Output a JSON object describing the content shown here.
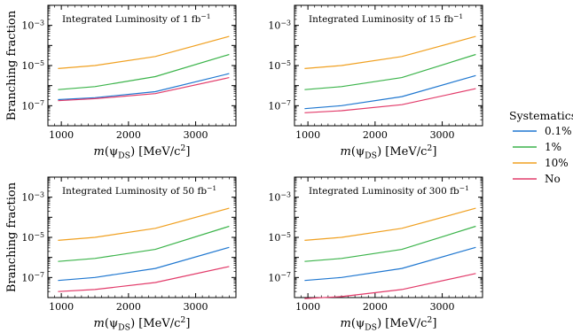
{
  "chart_data": [
    {
      "type": "line",
      "annotation": "Integrated Luminosity of 1 fb⁻¹",
      "xlabel": "m(ψ_DS) [MeV/c²]",
      "ylabel": "Branching fraction",
      "xlim": [
        800,
        3600
      ],
      "ylim_log10": [
        -8,
        -2
      ],
      "y_scale": "log",
      "x_ticks": [
        "1000",
        "2000",
        "3000"
      ],
      "x_tick_values": [
        1000,
        2000,
        3000
      ],
      "y_ticks": [
        "10⁻⁷",
        "10⁻⁵",
        "10⁻³"
      ],
      "y_tick_values_log10": [
        -7,
        -5,
        -3
      ],
      "x": [
        950,
        1500,
        2400,
        3500
      ],
      "series": [
        {
          "name": "0.1%",
          "color": "#1f77d0",
          "log10_values": [
            -6.7,
            -6.6,
            -6.3,
            -5.4
          ]
        },
        {
          "name": "1%",
          "color": "#3cb44b",
          "log10_values": [
            -6.2,
            -6.05,
            -5.55,
            -4.45
          ]
        },
        {
          "name": "10%",
          "color": "#f0a020",
          "log10_values": [
            -5.15,
            -5.0,
            -4.55,
            -3.55
          ]
        },
        {
          "name": "No",
          "color": "#e23b6a",
          "log10_values": [
            -6.75,
            -6.65,
            -6.4,
            -5.6
          ]
        }
      ]
    },
    {
      "type": "line",
      "annotation": "Integrated Luminosity of 15 fb⁻¹",
      "xlabel": "m(ψ_DS) [MeV/c²]",
      "ylabel": "",
      "xlim": [
        800,
        3600
      ],
      "ylim_log10": [
        -8,
        -2
      ],
      "y_scale": "log",
      "x_ticks": [
        "1000",
        "2000",
        "3000"
      ],
      "x_tick_values": [
        1000,
        2000,
        3000
      ],
      "y_ticks": [
        "10⁻⁷",
        "10⁻⁵",
        "10⁻³"
      ],
      "y_tick_values_log10": [
        -7,
        -5,
        -3
      ],
      "x": [
        950,
        1500,
        2400,
        3500
      ],
      "series": [
        {
          "name": "0.1%",
          "color": "#1f77d0",
          "log10_values": [
            -7.15,
            -7.0,
            -6.55,
            -5.5
          ]
        },
        {
          "name": "1%",
          "color": "#3cb44b",
          "log10_values": [
            -6.2,
            -6.05,
            -5.6,
            -4.45
          ]
        },
        {
          "name": "10%",
          "color": "#f0a020",
          "log10_values": [
            -5.15,
            -5.0,
            -4.55,
            -3.55
          ]
        },
        {
          "name": "No",
          "color": "#e23b6a",
          "log10_values": [
            -7.35,
            -7.25,
            -6.95,
            -6.15
          ]
        }
      ]
    },
    {
      "type": "line",
      "annotation": "Integrated Luminosity of 50 fb⁻¹",
      "xlabel": "m(ψ_DS) [MeV/c²]",
      "ylabel": "Branching fraction",
      "xlim": [
        800,
        3600
      ],
      "ylim_log10": [
        -8,
        -2
      ],
      "y_scale": "log",
      "x_ticks": [
        "1000",
        "2000",
        "3000"
      ],
      "x_tick_values": [
        1000,
        2000,
        3000
      ],
      "y_ticks": [
        "10⁻⁷",
        "10⁻⁵",
        "10⁻³"
      ],
      "y_tick_values_log10": [
        -7,
        -5,
        -3
      ],
      "x": [
        950,
        1500,
        2400,
        3500
      ],
      "series": [
        {
          "name": "0.1%",
          "color": "#1f77d0",
          "log10_values": [
            -7.15,
            -7.0,
            -6.55,
            -5.5
          ]
        },
        {
          "name": "1%",
          "color": "#3cb44b",
          "log10_values": [
            -6.2,
            -6.05,
            -5.6,
            -4.45
          ]
        },
        {
          "name": "10%",
          "color": "#f0a020",
          "log10_values": [
            -5.15,
            -5.0,
            -4.55,
            -3.55
          ]
        },
        {
          "name": "No",
          "color": "#e23b6a",
          "log10_values": [
            -7.7,
            -7.6,
            -7.25,
            -6.45
          ]
        }
      ]
    },
    {
      "type": "line",
      "annotation": "Integrated Luminosity of 300 fb⁻¹",
      "xlabel": "m(ψ_DS) [MeV/c²]",
      "ylabel": "",
      "xlim": [
        800,
        3600
      ],
      "ylim_log10": [
        -8,
        -2
      ],
      "y_scale": "log",
      "x_ticks": [
        "1000",
        "2000",
        "3000"
      ],
      "x_tick_values": [
        1000,
        2000,
        3000
      ],
      "y_ticks": [
        "10⁻⁷",
        "10⁻⁵",
        "10⁻³"
      ],
      "y_tick_values_log10": [
        -7,
        -5,
        -3
      ],
      "x": [
        950,
        1500,
        2400,
        3500
      ],
      "series": [
        {
          "name": "0.1%",
          "color": "#1f77d0",
          "log10_values": [
            -7.15,
            -7.0,
            -6.55,
            -5.5
          ]
        },
        {
          "name": "1%",
          "color": "#3cb44b",
          "log10_values": [
            -6.2,
            -6.05,
            -5.6,
            -4.45
          ]
        },
        {
          "name": "10%",
          "color": "#f0a020",
          "log10_values": [
            -5.15,
            -5.0,
            -4.55,
            -3.55
          ]
        },
        {
          "name": "No",
          "color": "#e23b6a",
          "log10_values": [
            -8.05,
            -7.95,
            -7.6,
            -6.8
          ]
        }
      ]
    }
  ],
  "legend": {
    "title": "Systematics",
    "placement": "right",
    "items": [
      {
        "label": "0.1%",
        "color": "#1f77d0"
      },
      {
        "label": "1%",
        "color": "#3cb44b"
      },
      {
        "label": "10%",
        "color": "#f0a020"
      },
      {
        "label": "No",
        "color": "#e23b6a"
      }
    ]
  }
}
